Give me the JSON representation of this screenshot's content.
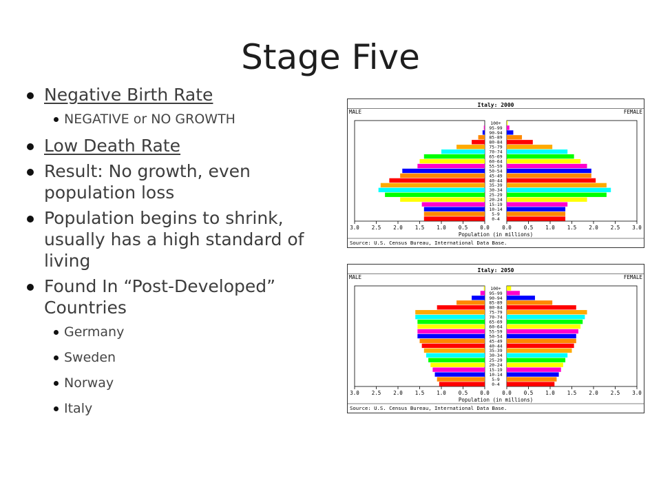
{
  "slide": {
    "title": "Stage Five",
    "bullets": [
      {
        "level": 1,
        "text": "Negative Birth Rate",
        "underline": true
      },
      {
        "level": 2,
        "text": "NEGATIVE or NO GROWTH"
      },
      {
        "level": 1,
        "text": "Low Death Rate",
        "underline": true
      },
      {
        "level": 1,
        "text": "Result: No growth, even population loss"
      },
      {
        "level": 1,
        "text": "Population begins to shrink, usually has a high standard of living"
      },
      {
        "level": 1,
        "text": "Found In “Post-Developed” Countries"
      },
      {
        "level": 2,
        "text": "Germany"
      },
      {
        "level": 2,
        "text": "Sweden"
      },
      {
        "level": 2,
        "text": "Norway"
      },
      {
        "level": 2,
        "text": "Italy"
      }
    ]
  },
  "chart_data": [
    {
      "type": "bar",
      "title": "Italy: 2000",
      "left_label": "MALE",
      "right_label": "FEMALE",
      "xlabel": "Population (in millions)",
      "source": "Source: U.S. Census Bureau, International Data Base.",
      "xlim": [
        -3.0,
        3.0
      ],
      "x_ticks": [
        "3.0",
        "2.5",
        "2.0",
        "1.5",
        "1.0",
        "0.5",
        "0.0",
        "0.0",
        "0.5",
        "1.0",
        "1.5",
        "2.0",
        "2.5",
        "3.0"
      ],
      "categories": [
        "100+",
        "95-99",
        "90-94",
        "85-89",
        "80-84",
        "75-79",
        "70-74",
        "65-69",
        "60-64",
        "55-59",
        "50-54",
        "45-49",
        "40-44",
        "35-39",
        "30-34",
        "25-29",
        "20-24",
        "15-19",
        "10-14",
        "5-9",
        "0-4"
      ],
      "series": [
        {
          "name": "MALE",
          "values": [
            0.0,
            0.02,
            0.05,
            0.15,
            0.3,
            0.65,
            1.0,
            1.4,
            1.5,
            1.55,
            1.9,
            1.95,
            2.2,
            2.4,
            2.45,
            2.3,
            1.95,
            1.45,
            1.4,
            1.4,
            1.4
          ]
        },
        {
          "name": "FEMALE",
          "values": [
            0.02,
            0.06,
            0.15,
            0.35,
            0.6,
            1.05,
            1.4,
            1.55,
            1.7,
            1.85,
            1.95,
            1.95,
            2.05,
            2.3,
            2.4,
            2.3,
            1.85,
            1.4,
            1.35,
            1.35,
            1.35
          ]
        }
      ],
      "bar_colors": [
        "#ff0000",
        "#ff8800",
        "#0000ff",
        "#ff00cc",
        "#ffff00",
        "#00ff00",
        "#00ffff",
        "#ffaa00"
      ]
    },
    {
      "type": "bar",
      "title": "Italy: 2050",
      "left_label": "MALE",
      "right_label": "FEMALE",
      "xlabel": "Population (in millions)",
      "source": "Source: U.S. Census Bureau, International Data Base.",
      "xlim": [
        -3.0,
        3.0
      ],
      "x_ticks": [
        "3.0",
        "2.5",
        "2.0",
        "1.5",
        "1.0",
        "0.5",
        "0.0",
        "0.0",
        "0.5",
        "1.0",
        "1.5",
        "2.0",
        "2.5",
        "3.0"
      ],
      "categories": [
        "100+",
        "95-99",
        "90-94",
        "85-89",
        "80-84",
        "75-79",
        "70-74",
        "65-69",
        "60-64",
        "55-59",
        "50-54",
        "45-49",
        "40-44",
        "35-39",
        "30-34",
        "25-29",
        "20-24",
        "15-19",
        "10-14",
        "5-9",
        "0-4"
      ],
      "series": [
        {
          "name": "MALE",
          "values": [
            0.02,
            0.1,
            0.3,
            0.65,
            1.1,
            1.6,
            1.6,
            1.55,
            1.55,
            1.55,
            1.55,
            1.5,
            1.45,
            1.4,
            1.35,
            1.3,
            1.25,
            1.2,
            1.15,
            1.1,
            1.05
          ]
        },
        {
          "name": "FEMALE",
          "values": [
            0.1,
            0.3,
            0.65,
            1.05,
            1.6,
            1.85,
            1.8,
            1.75,
            1.7,
            1.65,
            1.6,
            1.6,
            1.55,
            1.5,
            1.4,
            1.35,
            1.3,
            1.25,
            1.2,
            1.15,
            1.1
          ]
        }
      ],
      "bar_colors": [
        "#ff0000",
        "#ff8800",
        "#0000ff",
        "#ff00cc",
        "#ffff00",
        "#00ff00",
        "#00ffff",
        "#ffaa00"
      ]
    }
  ]
}
